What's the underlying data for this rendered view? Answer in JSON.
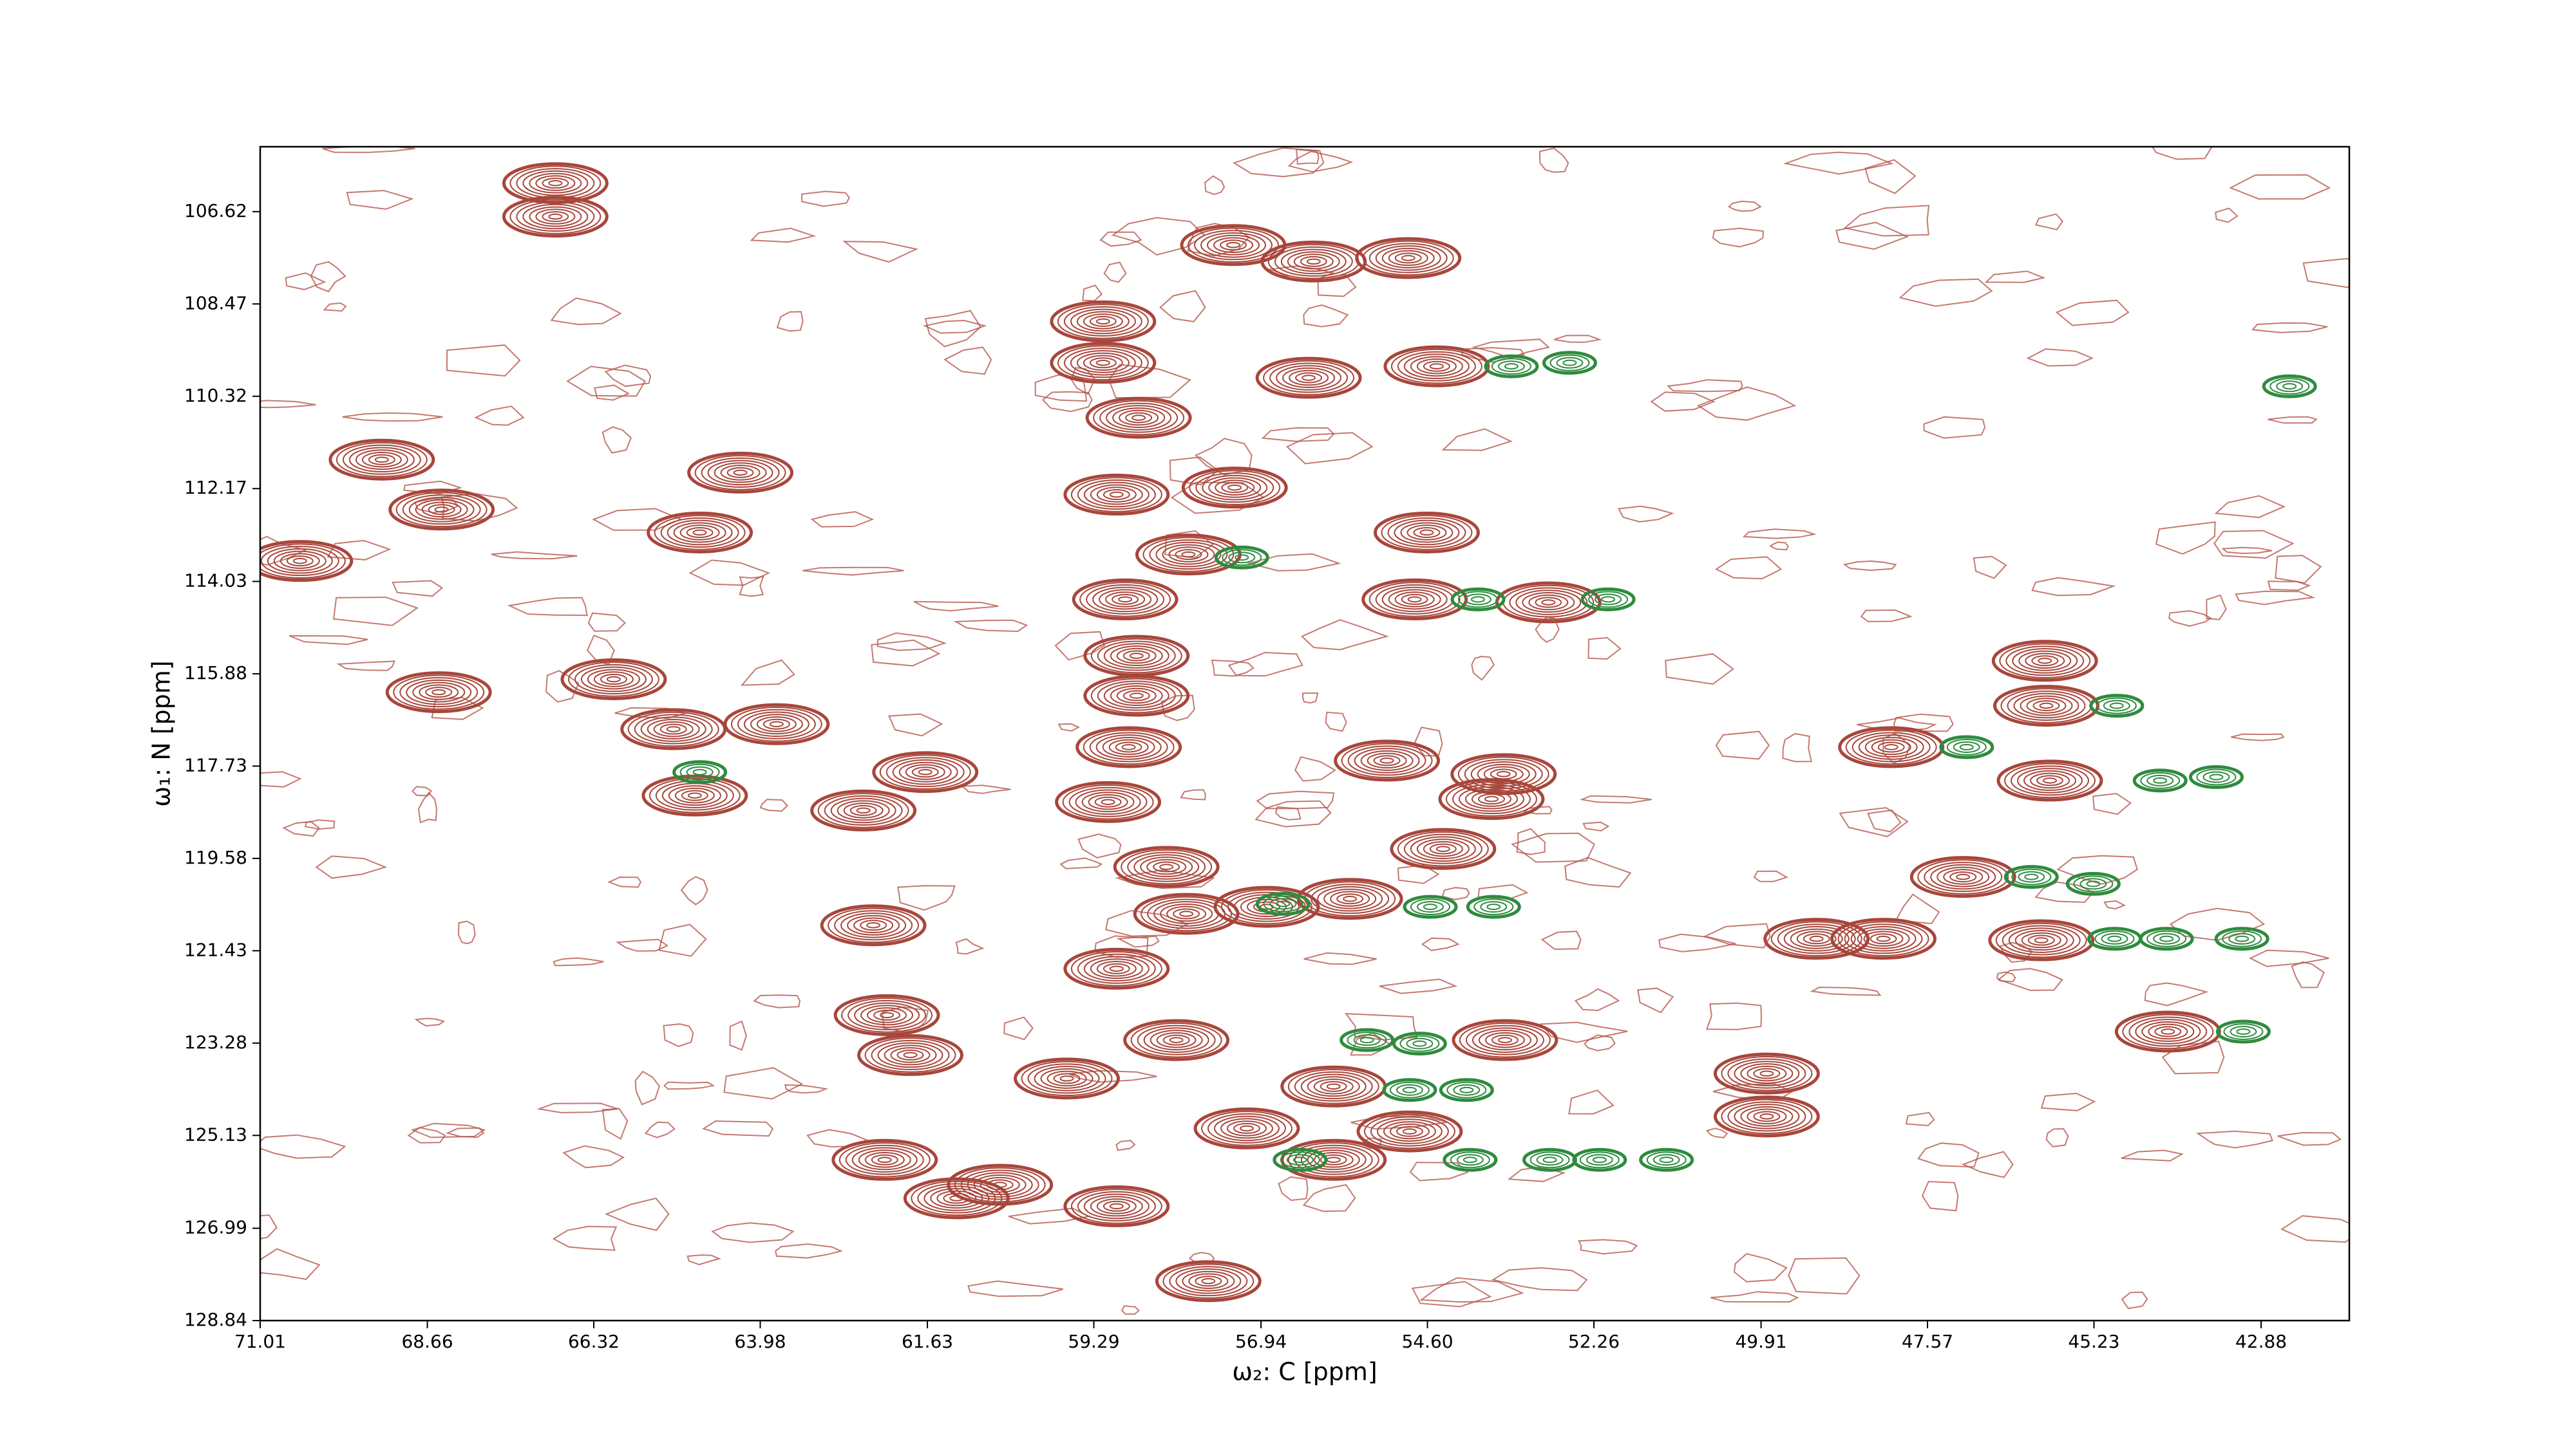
{
  "chart_data": {
    "type": "contour",
    "xlabel": "ω₂: C [ppm]",
    "ylabel": "ω₁: N [ppm]",
    "xlim": [
      71.01,
      41.64
    ],
    "ylim": [
      128.84,
      105.32
    ],
    "xticks": [
      71.01,
      68.66,
      66.32,
      63.98,
      61.63,
      59.29,
      56.94,
      {
        "value": 54.6,
        "label": "54.60"
      },
      52.26,
      49.91,
      47.57,
      45.23,
      42.88
    ],
    "yticks": [
      106.62,
      108.47,
      110.32,
      112.17,
      114.03,
      115.88,
      117.73,
      119.58,
      121.43,
      123.28,
      125.13,
      126.99,
      128.84
    ],
    "series": [
      {
        "color": "#a8463b",
        "x": [
          66.86,
          66.86,
          69.3,
          68.46,
          64.26,
          64.83,
          70.45,
          68.5,
          66.04,
          65.2,
          63.75,
          64.9,
          61.66,
          62.53,
          62.39,
          59.16,
          59.16,
          58.66,
          58.97,
          57.31,
          57.96,
          58.85,
          58.69,
          58.69,
          58.8,
          57.33,
          56.2,
          54.87,
          56.27,
          54.47,
          54.61,
          54.78,
          52.9,
          55.17,
          53.53,
          53.7,
          59.09,
          58.27,
          57.99,
          56.86,
          55.69,
          54.38,
          58.97,
          62.2,
          61.87,
          59.67,
          58.13,
          55.92,
          54.85,
          53.51,
          57.14,
          55.92,
          62.23,
          61.22,
          60.61,
          58.97,
          57.68,
          49.83,
          49.83,
          48.08,
          45.85,
          47.07,
          45.92,
          45.9,
          45.97,
          44.19,
          48.19,
          49.13
        ],
        "y": [
          106.05,
          106.72,
          111.59,
          112.59,
          111.85,
          113.05,
          113.62,
          116.25,
          115.99,
          116.99,
          116.89,
          118.32,
          117.85,
          118.62,
          120.92,
          108.82,
          109.65,
          110.75,
          112.29,
          112.15,
          113.49,
          114.39,
          115.52,
          116.32,
          117.35,
          107.29,
          107.62,
          107.55,
          109.95,
          109.72,
          113.05,
          114.39,
          114.45,
          117.62,
          117.89,
          118.39,
          118.45,
          119.75,
          120.69,
          120.55,
          120.39,
          119.39,
          121.79,
          122.72,
          123.52,
          123.99,
          123.22,
          124.15,
          125.05,
          123.22,
          124.99,
          125.62,
          125.62,
          126.39,
          126.12,
          126.55,
          128.05,
          123.89,
          124.75,
          117.35,
          118.02,
          119.95,
          115.62,
          116.52,
          121.22,
          123.05,
          121.19,
          121.19
        ]
      },
      {
        "color": "#2e8b3e",
        "x": [
          53.42,
          52.6,
          42.48,
          57.21,
          53.89,
          52.06,
          44.91,
          47.02,
          44.3,
          43.51,
          46.11,
          44.94,
          44.21,
          43.15,
          54.56,
          55.45,
          54.71,
          54.85,
          54.05,
          54.0,
          52.88,
          52.18,
          51.24,
          64.83,
          43.13,
          45.24,
          56.63,
          56.39,
          53.67
        ],
        "y": [
          109.72,
          109.65,
          110.12,
          113.55,
          114.39,
          114.39,
          116.52,
          117.35,
          118.02,
          117.95,
          119.95,
          121.19,
          121.19,
          121.19,
          120.55,
          123.22,
          123.29,
          124.22,
          124.22,
          125.62,
          125.62,
          125.62,
          125.62,
          117.85,
          123.05,
          120.09,
          120.49,
          125.62,
          120.55
        ]
      }
    ]
  }
}
